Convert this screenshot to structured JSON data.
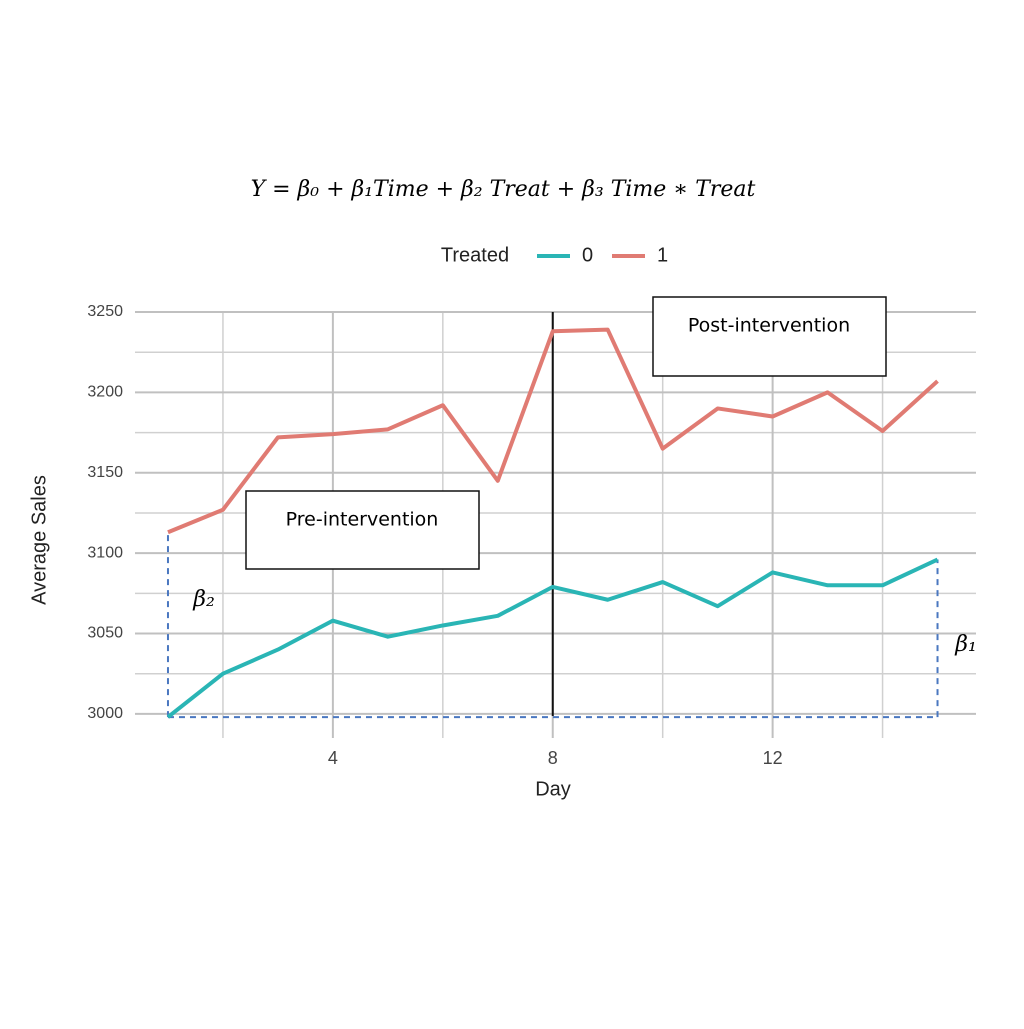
{
  "chart_data": {
    "type": "line",
    "title": "Y = β₀ + β₁Time + β₂ Treat + β₃ Time ∗ Treat",
    "x_label": "Day",
    "y_label": "Average Sales",
    "legend_title": "Treated",
    "x": [
      1,
      2,
      3,
      4,
      5,
      6,
      7,
      8,
      9,
      10,
      11,
      12,
      13,
      14,
      15
    ],
    "series": [
      {
        "name": "0",
        "color": "#2ab5b5",
        "values": [
          2998,
          3025,
          3040,
          3058,
          3048,
          3055,
          3061,
          3079,
          3071,
          3082,
          3067,
          3088,
          3080,
          3080,
          3096
        ]
      },
      {
        "name": "1",
        "color": "#e07b73",
        "values": [
          3113,
          3127,
          3172,
          3174,
          3177,
          3192,
          3145,
          3238,
          3239,
          3165,
          3190,
          3185,
          3200,
          3176,
          3207
        ]
      }
    ],
    "xlim": [
      0.4,
      15.7
    ],
    "ylim": [
      2985,
      3250
    ],
    "xticks": [
      4,
      8,
      12
    ],
    "yticks": [
      3000,
      3050,
      3100,
      3150,
      3200,
      3250
    ],
    "x_minor_ticks": [
      2,
      6,
      10,
      14
    ],
    "y_minor_ticks": [
      3025,
      3075,
      3125,
      3175,
      3225
    ],
    "grid": true,
    "vline": 8,
    "annotations": {
      "pre": "Pre-intervention",
      "post": "Post-intervention",
      "beta2": "β₂",
      "beta1": "β₁"
    }
  }
}
